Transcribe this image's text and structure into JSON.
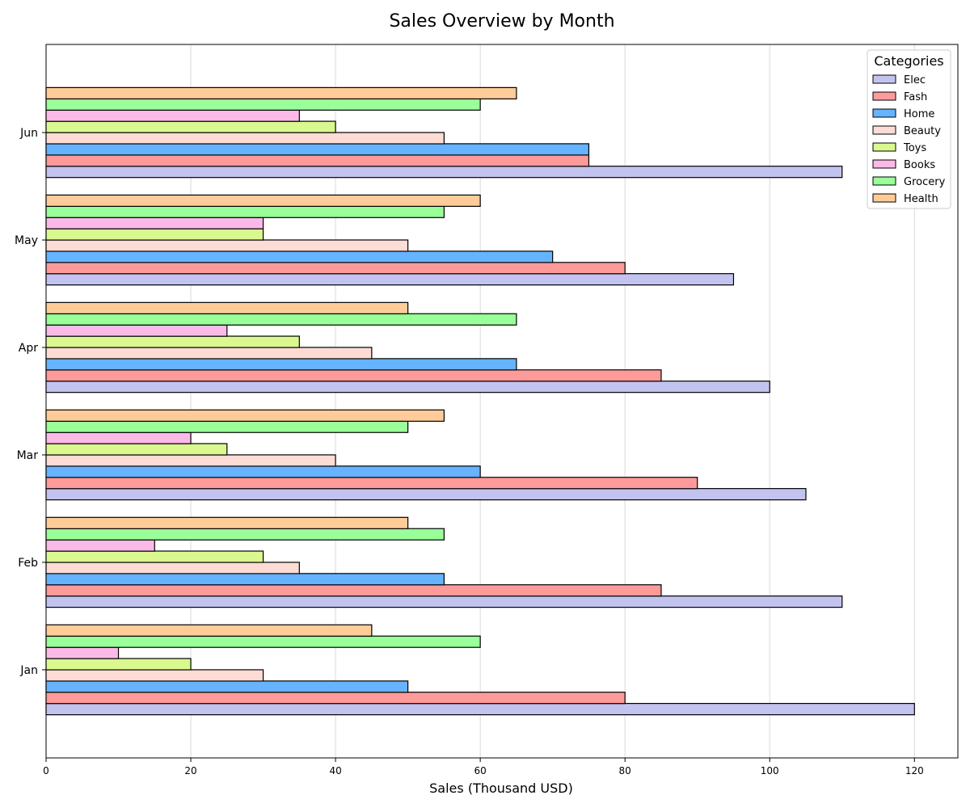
{
  "chart_data": {
    "type": "bar",
    "orientation": "horizontal",
    "title": "Sales Overview by Month",
    "xlabel": "Sales (Thousand USD)",
    "ylabel": "",
    "xlim": [
      0,
      126
    ],
    "xticks": [
      0,
      20,
      40,
      60,
      80,
      100,
      120
    ],
    "grid": "x",
    "categories": [
      "Jan",
      "Feb",
      "Mar",
      "Apr",
      "May",
      "Jun"
    ],
    "legend": {
      "title": "Categories",
      "placement": "top-right"
    },
    "series": [
      {
        "name": "Elec",
        "color": "#c3c3f0",
        "values": [
          120,
          110,
          105,
          100,
          95,
          110
        ]
      },
      {
        "name": "Fash",
        "color": "#ff9a9a",
        "values": [
          80,
          85,
          90,
          85,
          80,
          75
        ]
      },
      {
        "name": "Home",
        "color": "#66b3ff",
        "values": [
          50,
          55,
          60,
          65,
          70,
          75
        ]
      },
      {
        "name": "Beauty",
        "color": "#fcdcd4",
        "values": [
          30,
          35,
          40,
          45,
          50,
          55
        ]
      },
      {
        "name": "Toys",
        "color": "#d9f98f",
        "values": [
          20,
          30,
          25,
          35,
          30,
          40
        ]
      },
      {
        "name": "Books",
        "color": "#fbb9e8",
        "values": [
          10,
          15,
          20,
          25,
          30,
          35
        ]
      },
      {
        "name": "Grocery",
        "color": "#99ff99",
        "values": [
          60,
          55,
          50,
          65,
          55,
          60
        ]
      },
      {
        "name": "Health",
        "color": "#ffcc99",
        "values": [
          45,
          50,
          55,
          50,
          60,
          65
        ]
      }
    ]
  }
}
